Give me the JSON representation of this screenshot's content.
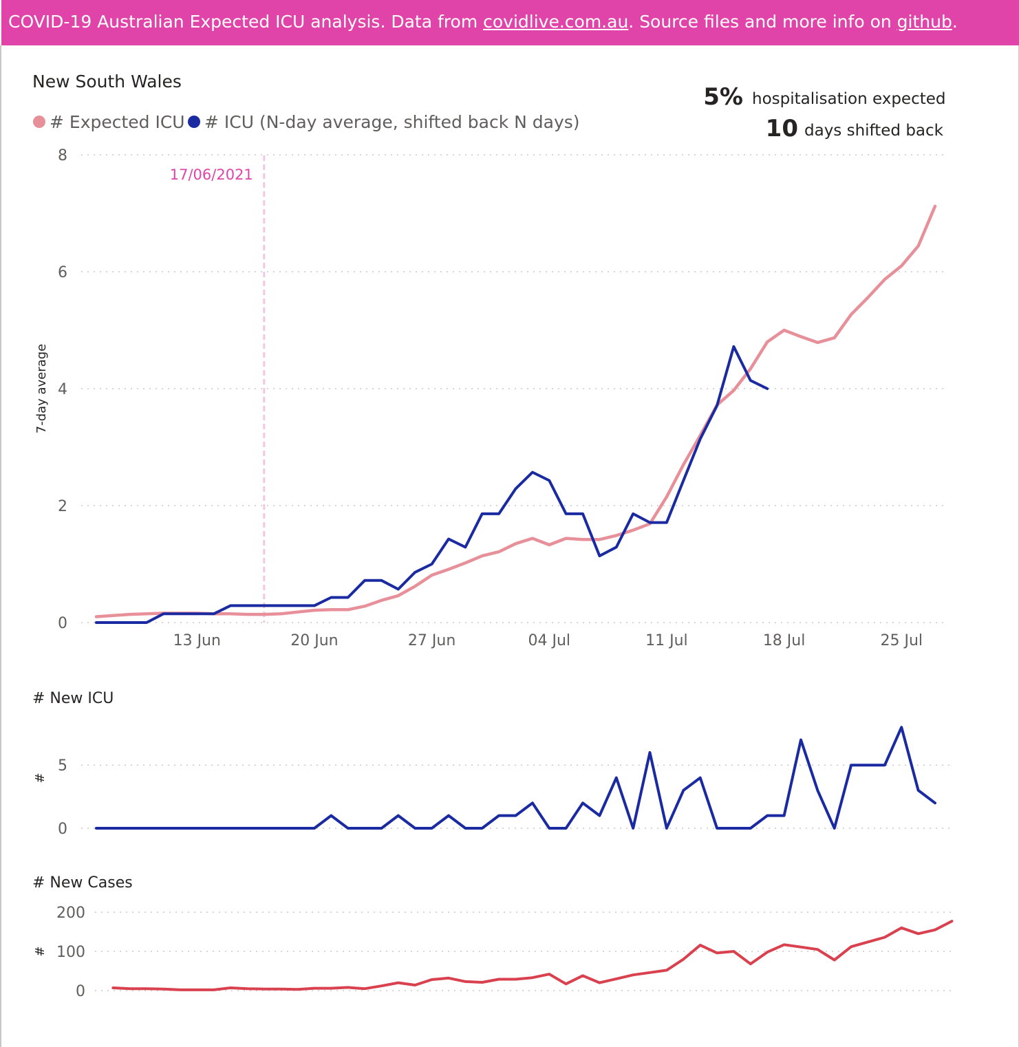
{
  "banner": {
    "prefix": "COVID-19 Australian Expected ICU analysis. Data from ",
    "link1": "covidlive.com.au",
    "middle": ". Source files and more info on ",
    "link2": "github",
    "suffix": "."
  },
  "colors": {
    "banner": "#e044a8",
    "expected": "#e8909a",
    "icu": "#1a2aa0",
    "cases": "#d9414f",
    "reference": "#e044a8"
  },
  "kpi": {
    "hosp_value": "5%",
    "hosp_label": "hospitalisation expected",
    "days_value": "10",
    "days_label": "days shifted back"
  },
  "chart_data": [
    {
      "type": "line",
      "title": "New South Wales",
      "ylabel": "7-day average",
      "ylim": [
        0,
        8
      ],
      "yticks": [
        0,
        2,
        4,
        6,
        8
      ],
      "grid": true,
      "legend": "top-left",
      "x_start": "2021-06-09",
      "x_end": "2021-07-28",
      "xticks": [
        {
          "date": "2021-06-13",
          "label": "13 Jun"
        },
        {
          "date": "2021-06-20",
          "label": "20 Jun"
        },
        {
          "date": "2021-06-27",
          "label": "27 Jun"
        },
        {
          "date": "2021-07-04",
          "label": "04 Jul"
        },
        {
          "date": "2021-07-11",
          "label": "11 Jul"
        },
        {
          "date": "2021-07-18",
          "label": "18 Jul"
        },
        {
          "date": "2021-07-25",
          "label": "25 Jul"
        }
      ],
      "reference_line": {
        "date": "2021-06-17",
        "label": "17/06/2021"
      },
      "series": [
        {
          "name": "# Expected ICU",
          "color": "#e8909a",
          "start": "2021-06-07",
          "values": [
            0.1,
            0.12,
            0.14,
            0.15,
            0.16,
            0.16,
            0.16,
            0.15,
            0.15,
            0.14,
            0.14,
            0.15,
            0.18,
            0.21,
            0.22,
            0.22,
            0.28,
            0.38,
            0.46,
            0.62,
            0.81,
            0.91,
            1.02,
            1.14,
            1.21,
            1.35,
            1.44,
            1.33,
            1.44,
            1.42,
            1.42,
            1.49,
            1.58,
            1.69,
            2.15,
            2.7,
            3.2,
            3.72,
            3.97,
            4.34,
            4.8,
            5.0,
            4.89,
            4.79,
            4.87,
            5.27,
            5.56,
            5.87,
            6.1,
            6.44,
            7.12
          ]
        },
        {
          "name": "# ICU (N-day average, shifted back N days)",
          "color": "#1a2aa0",
          "start": "2021-06-07",
          "values": [
            0,
            0,
            0,
            0,
            0.15,
            0.15,
            0.15,
            0.15,
            0.29,
            0.29,
            0.29,
            0.29,
            0.29,
            0.29,
            0.43,
            0.43,
            0.72,
            0.72,
            0.57,
            0.86,
            1.0,
            1.43,
            1.29,
            1.86,
            1.86,
            2.29,
            2.57,
            2.43,
            1.86,
            1.86,
            1.14,
            1.29,
            1.86,
            1.71,
            1.71,
            2.43,
            3.14,
            3.71,
            4.72,
            4.14,
            4.0
          ]
        }
      ]
    },
    {
      "type": "line",
      "title": "# New ICU",
      "ylabel": "#",
      "ylim": [
        0,
        8.5
      ],
      "yticks": [
        0,
        5
      ],
      "grid": true,
      "start": "2021-06-07",
      "series": [
        {
          "name": "",
          "color": "#1a2aa0",
          "values": [
            0,
            0,
            0,
            0,
            0,
            0,
            0,
            0,
            0,
            0,
            0,
            0,
            0,
            0,
            1,
            0,
            0,
            0,
            1,
            0,
            0,
            1,
            0,
            0,
            1,
            1,
            2,
            0,
            0,
            2,
            1,
            4,
            0,
            6,
            0,
            3,
            4,
            0,
            0,
            0,
            1,
            1,
            7,
            3,
            0,
            5,
            5,
            5,
            8,
            3,
            2
          ]
        }
      ]
    },
    {
      "type": "line",
      "title": "# New Cases",
      "ylabel": "#",
      "ylim": [
        0,
        200
      ],
      "yticks": [
        0,
        100,
        200
      ],
      "grid": true,
      "start": "2021-06-08",
      "series": [
        {
          "name": "",
          "color": "#d9414f",
          "values": [
            7,
            5,
            5,
            4,
            2,
            2,
            2,
            7,
            5,
            4,
            4,
            3,
            6,
            6,
            8,
            5,
            12,
            20,
            14,
            28,
            32,
            23,
            21,
            29,
            29,
            33,
            42,
            17,
            38,
            20,
            30,
            40,
            46,
            52,
            80,
            116,
            96,
            100,
            68,
            98,
            117,
            111,
            105,
            78,
            112,
            124,
            136,
            160,
            145,
            155,
            177
          ]
        }
      ]
    }
  ]
}
